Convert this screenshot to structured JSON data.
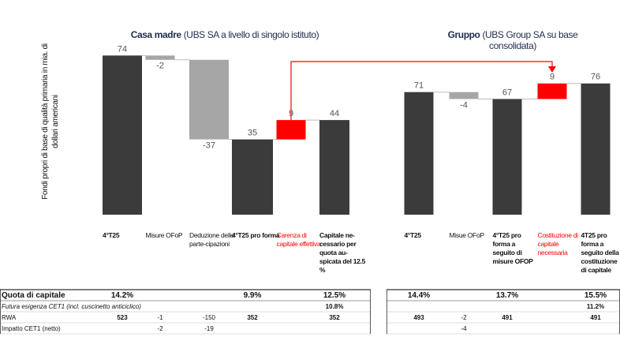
{
  "chart_data": [
    {
      "type": "waterfall",
      "title": "Casa madre",
      "subtitle": "(UBS SA a livello di singolo istituto)",
      "ylabel": "Fondi propri di base di qualità primaria in mia. di dollari americani",
      "categories": [
        "4°T25",
        "Misure OFoP",
        "Deduzione delle parte-cipazioni",
        "4°T25 pro forma",
        "Carenza di capitale effettiva",
        "Capitale ne-cessario per quota au-spicata del 12.5 %"
      ],
      "values": [
        74,
        -2,
        -37,
        35,
        9,
        44
      ],
      "colors": [
        "#3b3b3b",
        "#a6a6a6",
        "#a6a6a6",
        "#3b3b3b",
        "#ff0000",
        "#3b3b3b"
      ],
      "ylim": [
        0,
        80
      ]
    },
    {
      "type": "waterfall",
      "title": "Gruppo",
      "subtitle": "(UBS Group SA su base consolidata)",
      "categories": [
        "4°T25",
        "Misue OFoP",
        "4°T25 pro forma a seguito di misure OFOP",
        "Costituzione di capitale necessaria",
        "4T25 pro forma a seguito della costituzione di capitale"
      ],
      "values": [
        71,
        -4,
        67,
        9,
        76
      ],
      "colors": [
        "#3b3b3b",
        "#a6a6a6",
        "#3b3b3b",
        "#ff0000",
        "#3b3b3b"
      ],
      "ylim": [
        0,
        80
      ]
    }
  ],
  "table": {
    "rows": [
      {
        "label": "Quota di capitale",
        "cells": [
          [
            "14.2%",
            null,
            null,
            "9.9%",
            null,
            "12.5%"
          ],
          [
            "14.4%",
            null,
            "13.7%",
            null,
            "15.5%"
          ]
        ]
      },
      {
        "label": "Futura esigenza CET1 (incl. cuscinetto anticiclico)",
        "cells": [
          [
            null,
            null,
            null,
            null,
            null,
            "10.8%"
          ],
          [
            null,
            null,
            null,
            null,
            "11.2%"
          ]
        ]
      },
      {
        "label": "RWA",
        "cells": [
          [
            "523",
            "-1",
            "-150",
            "352",
            null,
            "352"
          ],
          [
            "493",
            "-2",
            "491",
            null,
            "491"
          ]
        ]
      },
      {
        "label": "Impatto CET1 (netto)",
        "cells": [
          [
            null,
            "-2",
            "-19",
            null,
            null,
            null
          ],
          [
            null,
            "-4",
            null,
            null,
            null
          ]
        ]
      }
    ]
  }
}
